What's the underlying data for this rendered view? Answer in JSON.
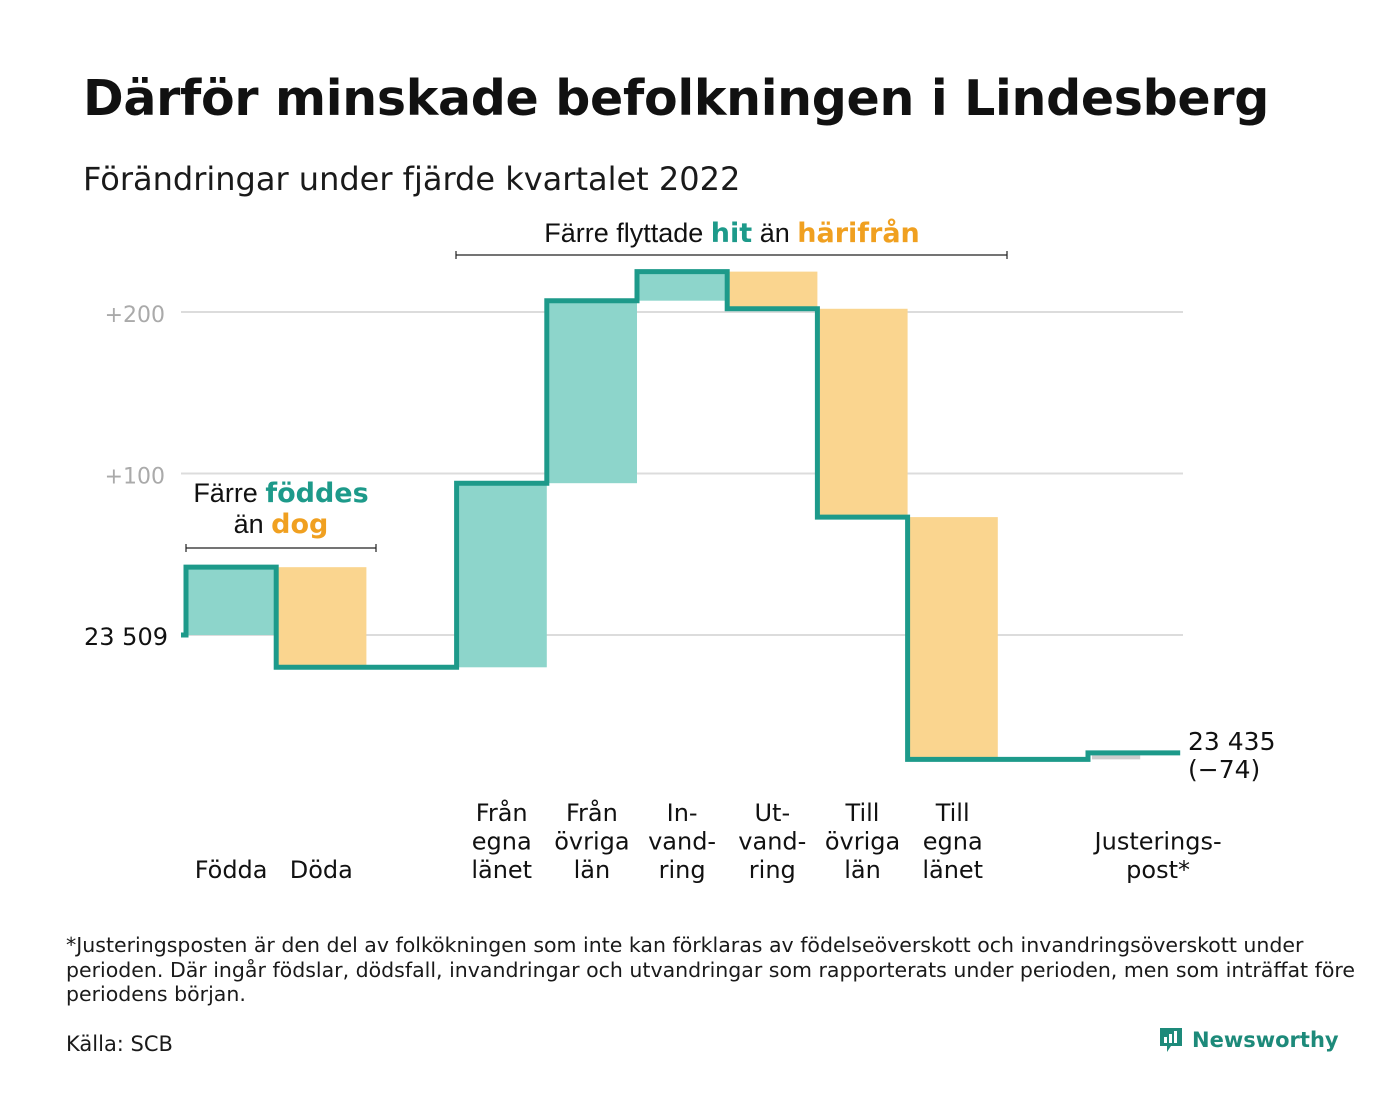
{
  "title": "Därför minskade befolkningen i Lindesberg",
  "subtitle": "Förändringar under fjärde kvartalet 2022",
  "annotations": {
    "migration_prefix": "Färre flyttade",
    "migration_hit": "hit",
    "migration_mid": "än",
    "migration_harifran": "härifrån",
    "births_prefix": "Färre",
    "births_foddes": "föddes",
    "births_mid": "än",
    "births_dog": "dog"
  },
  "colors": {
    "increase": "#8dd5cb",
    "decrease": "#fad58f",
    "line": "#1d9a8a",
    "adjustment": "#cccccc",
    "grid": "#dcdcdc",
    "teal_text": "#1d9a8a",
    "orange_text": "#f0a020"
  },
  "chart_data": {
    "type": "waterfall",
    "start_value": 23509,
    "start_label": "23 509",
    "end_label_value": "23 435",
    "end_label_change": "(−74)",
    "y_ticks": [
      {
        "value": 200,
        "label": "+200"
      },
      {
        "value": 100,
        "label": "+100"
      }
    ],
    "ylim": [
      -80,
      235
    ],
    "categories": [
      {
        "name": "Födda",
        "lines": [
          "Födda"
        ],
        "value": 42,
        "kind": "increase"
      },
      {
        "name": "Döda",
        "lines": [
          "Döda"
        ],
        "value": -62,
        "kind": "decrease"
      },
      {
        "name": "",
        "lines": [],
        "value": 0,
        "kind": "gap"
      },
      {
        "name": "Från egna länet",
        "lines": [
          "Från",
          "egna",
          "länet"
        ],
        "value": 114,
        "kind": "increase"
      },
      {
        "name": "Från övriga län",
        "lines": [
          "Från",
          "övriga",
          "län"
        ],
        "value": 113,
        "kind": "increase"
      },
      {
        "name": "Invandring",
        "lines": [
          "In-",
          "vand-",
          "ring"
        ],
        "value": 18,
        "kind": "increase"
      },
      {
        "name": "Utvandring",
        "lines": [
          "Ut-",
          "vand-",
          "ring"
        ],
        "value": -23,
        "kind": "decrease"
      },
      {
        "name": "Till övriga län",
        "lines": [
          "Till",
          "övriga",
          "län"
        ],
        "value": -129,
        "kind": "decrease"
      },
      {
        "name": "Till egna länet",
        "lines": [
          "Till",
          "egna",
          "länet"
        ],
        "value": -150,
        "kind": "decrease"
      },
      {
        "name": "",
        "lines": [],
        "value": 0,
        "kind": "gap"
      },
      {
        "name": "Justeringspost*",
        "lines": [
          "Justerings-",
          "post*"
        ],
        "value": 4,
        "kind": "adjustment"
      }
    ]
  },
  "footnote": "*Justeringsposten är den del av folkökningen som inte kan förklaras av födelseöverskott och invandringsöverskott under perioden. Där ingår födslar, dödsfall, invandringar och utvandringar som rapporterats under perioden, men som inträffat före periodens början.",
  "source": "Källa: SCB",
  "brand": {
    "name": "Newsworthy",
    "icon": "newsworthy-logo-icon"
  }
}
